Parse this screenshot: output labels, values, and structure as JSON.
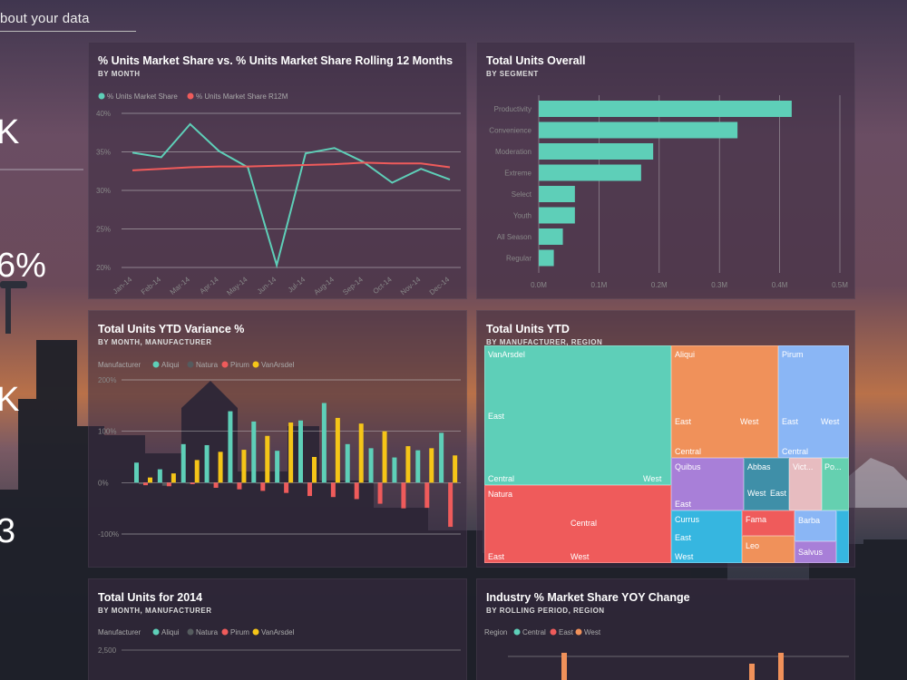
{
  "header": {
    "subtitle": "bout your data"
  },
  "kpis": [
    "K",
    "6%",
    "K",
    "3"
  ],
  "chart1": {
    "title": "% Units Market Share vs. % Units Market Share Rolling 12 Months",
    "subtitle": "BY MONTH",
    "legend": [
      "% Units Market Share",
      "% Units Market Share R12M"
    ],
    "yticks": [
      "40%",
      "35%",
      "30%",
      "25%",
      "20%"
    ],
    "xticks": [
      "Jan-14",
      "Feb-14",
      "Mar-14",
      "Apr-14",
      "May-14",
      "Jun-14",
      "Jul-14",
      "Aug-14",
      "Sep-14",
      "Oct-14",
      "Nov-14",
      "Dec-14"
    ]
  },
  "chart2": {
    "title": "Total Units Overall",
    "subtitle": "BY SEGMENT",
    "xticks": [
      "0.0M",
      "0.1M",
      "0.2M",
      "0.3M",
      "0.4M",
      "0.5M"
    ]
  },
  "chart3": {
    "title": "Total Units YTD Variance %",
    "subtitle": "BY MONTH, MANUFACTURER",
    "legend_title": "Manufacturer",
    "legend": [
      "Aliqui",
      "Natura",
      "Pirum",
      "VanArsdel"
    ],
    "yticks": [
      "200%",
      "100%",
      "0%",
      "-100%"
    ]
  },
  "chart4": {
    "title": "Total Units YTD",
    "subtitle": "BY MANUFACTURER, REGION",
    "cells": {
      "vanarsdel": "VanArsdel",
      "aliqui": "Aliqui",
      "pirum": "Pirum",
      "natura": "Natura",
      "quibus": "Quibus",
      "abbas": "Abbas",
      "victoria": "Vict...",
      "pomum": "Po...",
      "currus": "Currus",
      "fama": "Fama",
      "barba": "Barba",
      "leo": "Leo",
      "salvus": "Salvus",
      "east": "East",
      "west": "West",
      "central": "Central"
    }
  },
  "chart5": {
    "title": "Total Units for 2014",
    "subtitle": "BY MONTH, MANUFACTURER",
    "legend_title": "Manufacturer",
    "legend": [
      "Aliqui",
      "Natura",
      "Pirum",
      "VanArsdel"
    ],
    "ytick": "2,500"
  },
  "chart6": {
    "title": "Industry % Market Share YOY Change",
    "subtitle": "BY ROLLING PERIOD, REGION",
    "legend_title": "Region",
    "legend": [
      "Central",
      "East",
      "West"
    ]
  },
  "colors": {
    "teal": "#5ecfb8",
    "red": "#ef5b5b",
    "yellow": "#f5c518",
    "grey": "#555b5e",
    "orange": "#f0915a",
    "blue": "#8ab6f5",
    "purple": "#a87fd8",
    "pink": "#e7bcc0",
    "cyan": "#36b6e0",
    "steel": "#3f8fa8",
    "lightgreen": "#65d0b0"
  },
  "chart_data": [
    {
      "type": "line",
      "title": "% Units Market Share vs. % Units Market Share Rolling 12 Months",
      "x": [
        "Jan-14",
        "Feb-14",
        "Mar-14",
        "Apr-14",
        "May-14",
        "Jun-14",
        "Jul-14",
        "Aug-14",
        "Sep-14",
        "Oct-14",
        "Nov-14",
        "Dec-14"
      ],
      "series": [
        {
          "name": "% Units Market Share",
          "values": [
            34.9,
            34.3,
            38.6,
            35.1,
            33.0,
            20.3,
            34.8,
            35.5,
            33.7,
            31.0,
            32.8,
            31.4
          ]
        },
        {
          "name": "% Units Market Share R12M",
          "values": [
            32.6,
            32.8,
            33.0,
            33.1,
            33.1,
            33.2,
            33.3,
            33.4,
            33.6,
            33.5,
            33.5,
            33.0
          ]
        }
      ],
      "ylim": [
        20,
        40
      ]
    },
    {
      "type": "bar",
      "title": "Total Units Overall",
      "categories": [
        "Productivity",
        "Convenience",
        "Moderation",
        "Extreme",
        "Select",
        "Youth",
        "All Season",
        "Regular"
      ],
      "values": [
        0.42,
        0.33,
        0.19,
        0.17,
        0.06,
        0.06,
        0.04,
        0.025
      ],
      "xlim": [
        0,
        0.5
      ]
    },
    {
      "type": "bar",
      "title": "Total Units YTD Variance %",
      "series": [
        {
          "name": "Aliqui",
          "values": [
            39,
            26,
            75,
            73,
            139,
            119,
            62,
            121,
            155,
            75,
            67,
            49,
            63,
            97
          ]
        },
        {
          "name": "Natura",
          "values": [
            -3,
            -6,
            -2,
            -2,
            -2,
            -2,
            -2,
            -2,
            -2,
            -2,
            -2,
            -2,
            -2,
            -2
          ]
        },
        {
          "name": "Pirum",
          "values": [
            -5,
            -7,
            -3,
            -10,
            -13,
            -16,
            -20,
            -26,
            -28,
            -32,
            -41,
            -50,
            -49,
            -86
          ]
        },
        {
          "name": "VanArsdel",
          "values": [
            10,
            18,
            44,
            60,
            64,
            91,
            117,
            50,
            126,
            115,
            100,
            71,
            67,
            53
          ]
        }
      ],
      "ylim": [
        -100,
        200
      ]
    }
  ]
}
